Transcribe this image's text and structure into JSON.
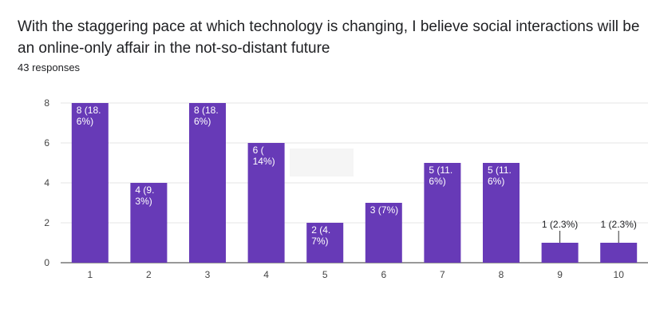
{
  "question": {
    "title": "With the staggering pace at which technology is changing, I believe social interactions will be an online-only affair in the not-so-distant future",
    "responses": "43 responses"
  },
  "colors": {
    "bar": "#673ab7",
    "grid": "#e6e6e6",
    "axis": "#333333"
  },
  "chart_data": {
    "type": "bar",
    "categories": [
      "1",
      "2",
      "3",
      "4",
      "5",
      "6",
      "7",
      "8",
      "9",
      "10"
    ],
    "values": [
      8,
      4,
      8,
      6,
      2,
      3,
      5,
      5,
      1,
      1
    ],
    "labels": [
      [
        "8 (18.",
        "6%)"
      ],
      [
        "4 (9.",
        "3%)"
      ],
      [
        "8 (18.",
        "6%)"
      ],
      [
        "6 (",
        "14%)"
      ],
      [
        "2 (4.",
        "7%)"
      ],
      [
        "3 (7%)"
      ],
      [
        "5 (11.",
        "6%)"
      ],
      [
        "5 (11.",
        "6%)"
      ],
      [
        "1 (2.3%)"
      ],
      [
        "1 (2.3%)"
      ]
    ],
    "yticks": [
      0,
      2,
      4,
      6,
      8
    ],
    "ylim": [
      0,
      8
    ],
    "grid": true,
    "title": "",
    "xlabel": "",
    "ylabel": ""
  }
}
